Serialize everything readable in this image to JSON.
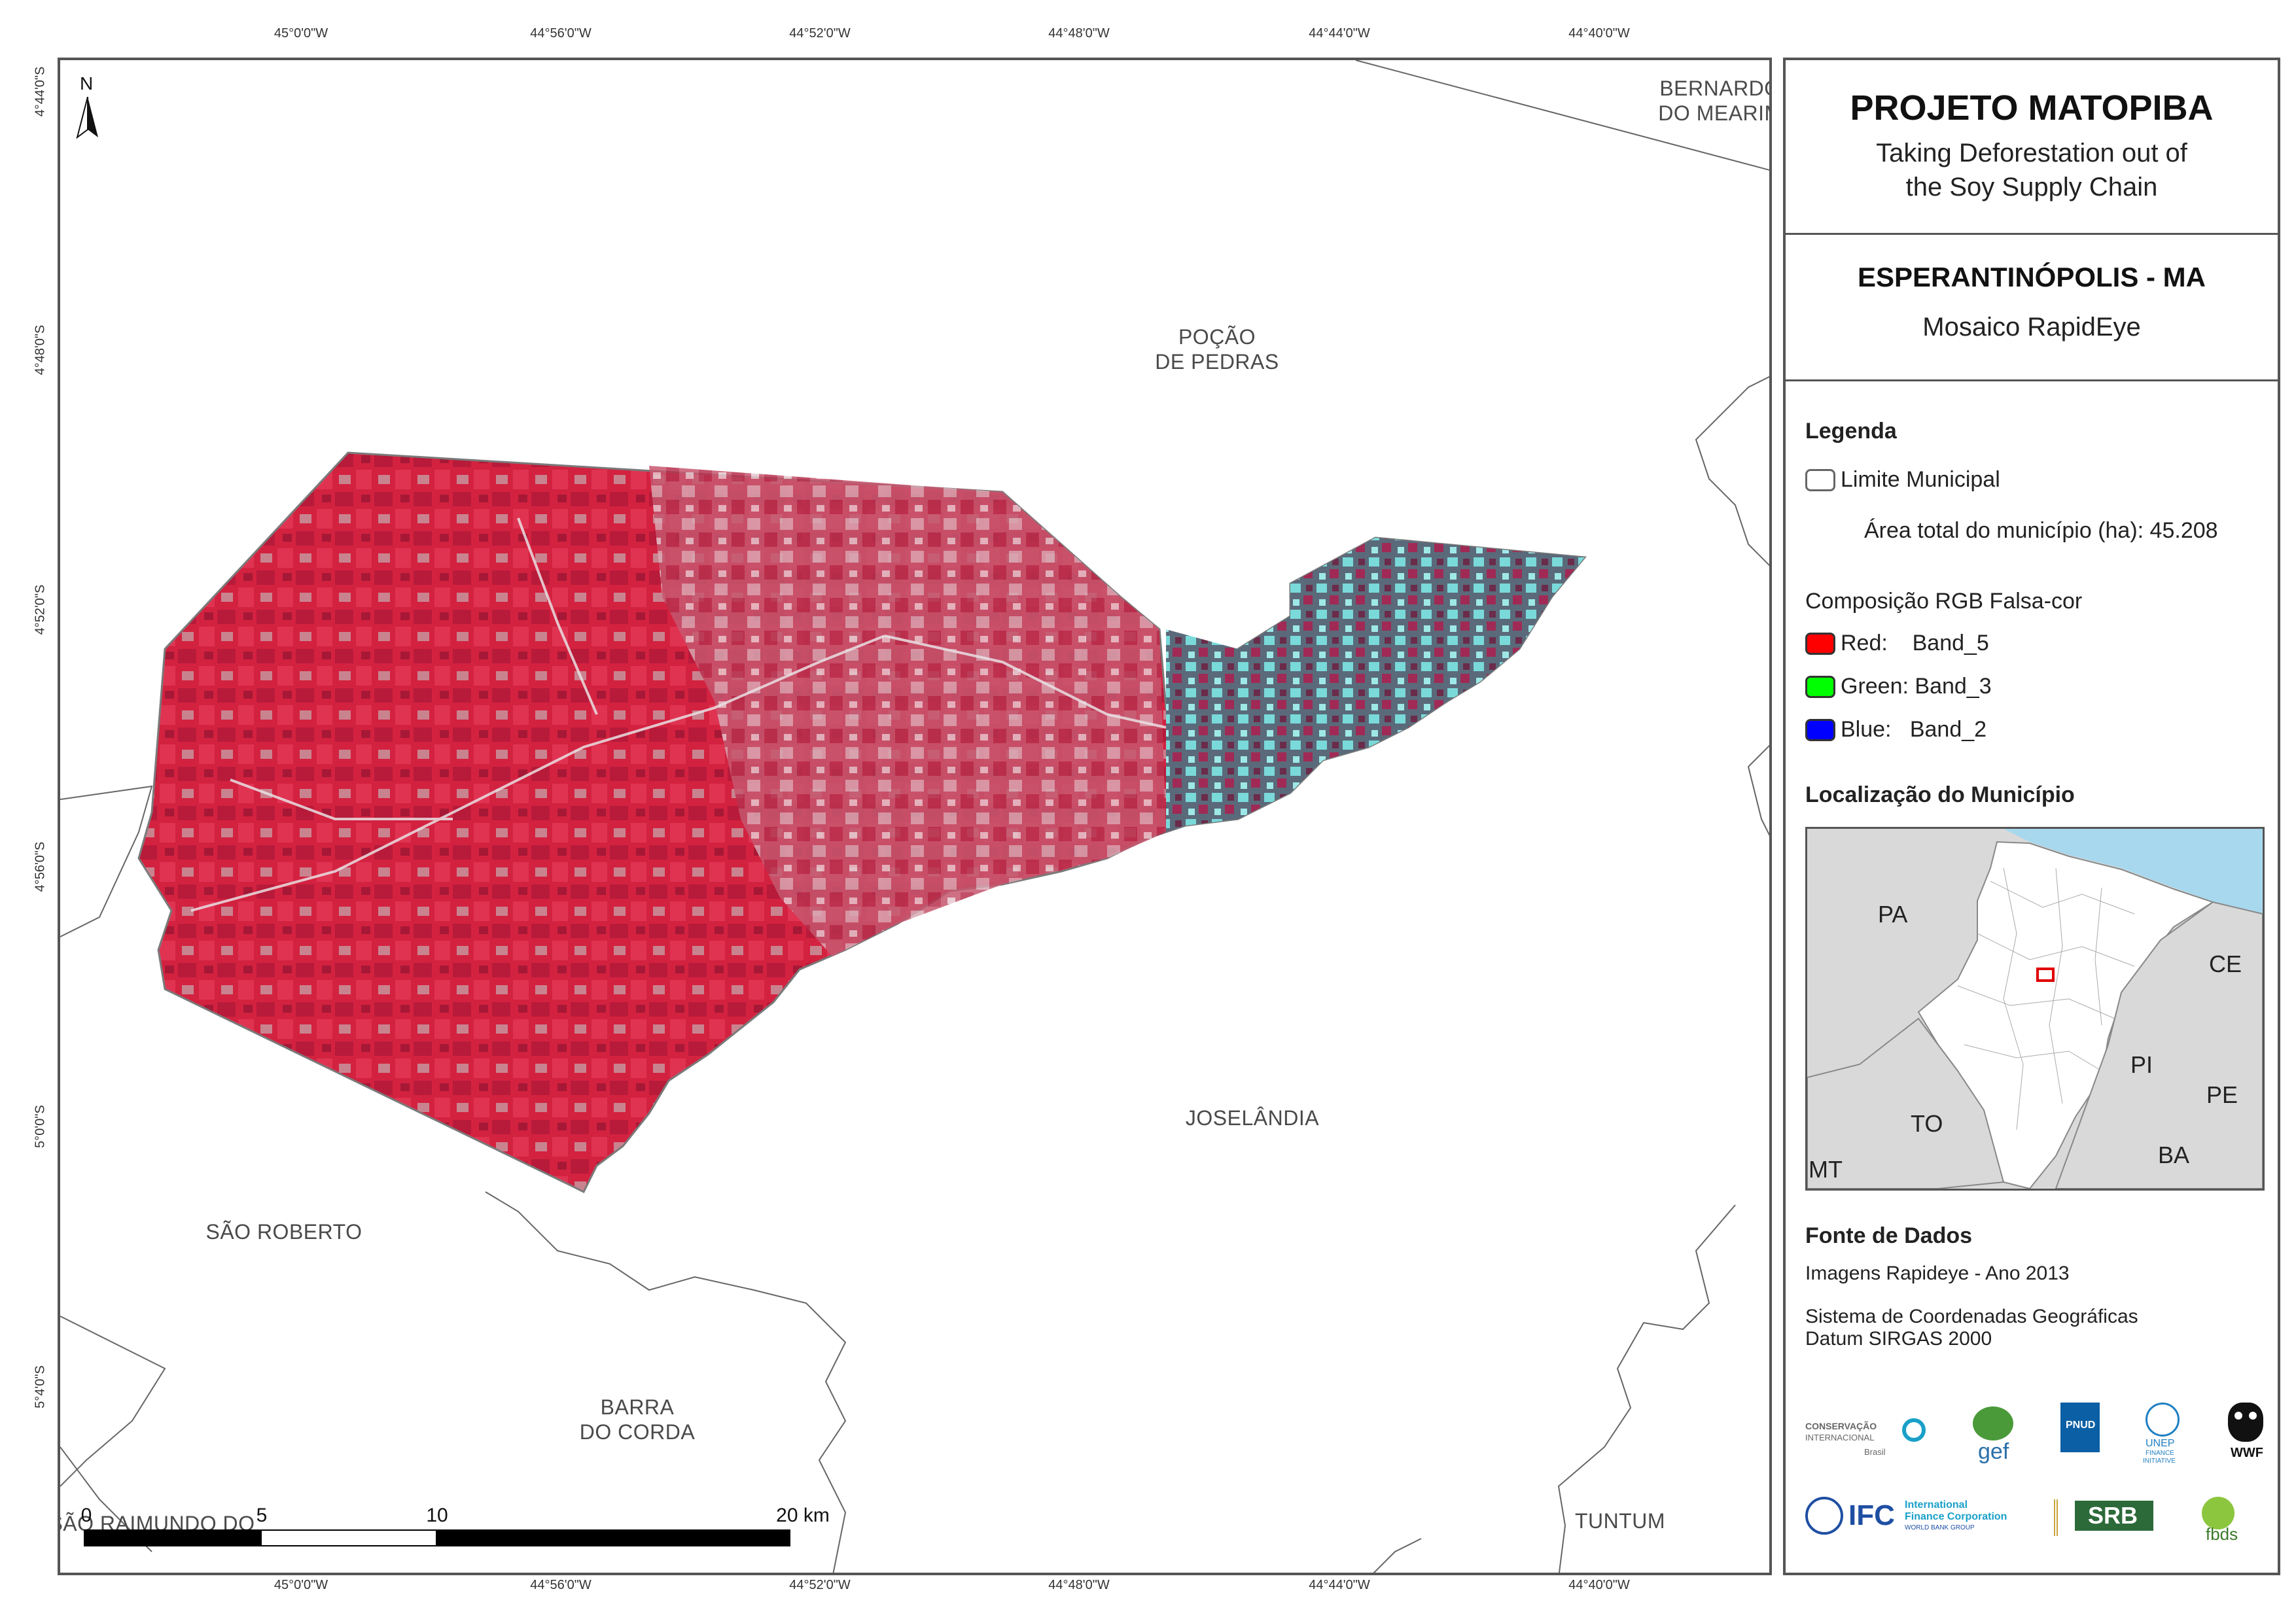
{
  "coords": {
    "lon": [
      "45°0'0\"W",
      "44°56'0\"W",
      "44°52'0\"W",
      "44°48'0\"W",
      "44°44'0\"W",
      "44°40'0\"W"
    ],
    "lat": [
      "4°44'0\"S",
      "4°48'0\"S",
      "4°52'0\"S",
      "4°56'0\"S",
      "5°0'0\"S",
      "5°4'0\"S"
    ]
  },
  "map": {
    "north_label": "N",
    "places": {
      "bernardo_1": "BERNARDO",
      "bernardo_2": "DO MEARIM",
      "pocao_1": "POÇÃO",
      "pocao_2": "DE PEDRAS",
      "joselandia": "JOSELÂNDIA",
      "sao_roberto": "SÃO ROBERTO",
      "barra_1": "BARRA",
      "barra_2": "DO CORDA",
      "sao_raimundo": "SÃO RAIMUNDO DO",
      "tuntum": "TUNTUM"
    },
    "scale": {
      "l0": "0",
      "l5": "5",
      "l10": "10",
      "l20": "20 km"
    }
  },
  "panel": {
    "project_title": "PROJETO MATOPIBA",
    "subtitle_1": "Taking Deforestation out of",
    "subtitle_2": "the Soy Supply Chain",
    "municipality": "ESPERANTINÓPOLIS - MA",
    "mosaic": "Mosaico RapidEye",
    "legend_title": "Legenda",
    "limite": "Limite Municipal",
    "area": "Área total do município (ha): 45.208",
    "composition": "Composição RGB Falsa-cor",
    "red": "Red:    Band_5",
    "green": "Green: Band_3",
    "blue": "Blue:   Band_2",
    "location_title": "Localização do Município",
    "inset_labels": {
      "pa": "PA",
      "ce": "CE",
      "pi": "PI",
      "pe": "PE",
      "to": "TO",
      "ba": "BA",
      "mt": "MT"
    },
    "sources_title": "Fonte de Dados",
    "source_1": "Imagens Rapideye - Ano 2013",
    "source_2": "Sistema de Coordenadas Geográficas",
    "source_3": "Datum SIRGAS 2000"
  },
  "logos": {
    "ci_1": "CONSERVAÇÃO",
    "ci_2": "INTERNACIONAL",
    "ci_3": "Brasil",
    "gef": "gef",
    "pnud": "PNUD",
    "unep_1": "UNEP",
    "unep_2": "FINANCE",
    "unep_3": "INITIATIVE",
    "wwf": "WWF",
    "ifc": "IFC",
    "ifc_1": "International",
    "ifc_2": "Finance Corporation",
    "ifc_3": "WORLD BANK GROUP",
    "srb": "SRB",
    "fbds": "fbds"
  },
  "colors": {
    "vegetation_red": "#d8243f",
    "cerrado_cyan": "#6fd6d6",
    "frame": "#555555",
    "ocean": "#a8d8ee",
    "inset_land": "#d9d9d9",
    "highlight": "#e00000"
  }
}
